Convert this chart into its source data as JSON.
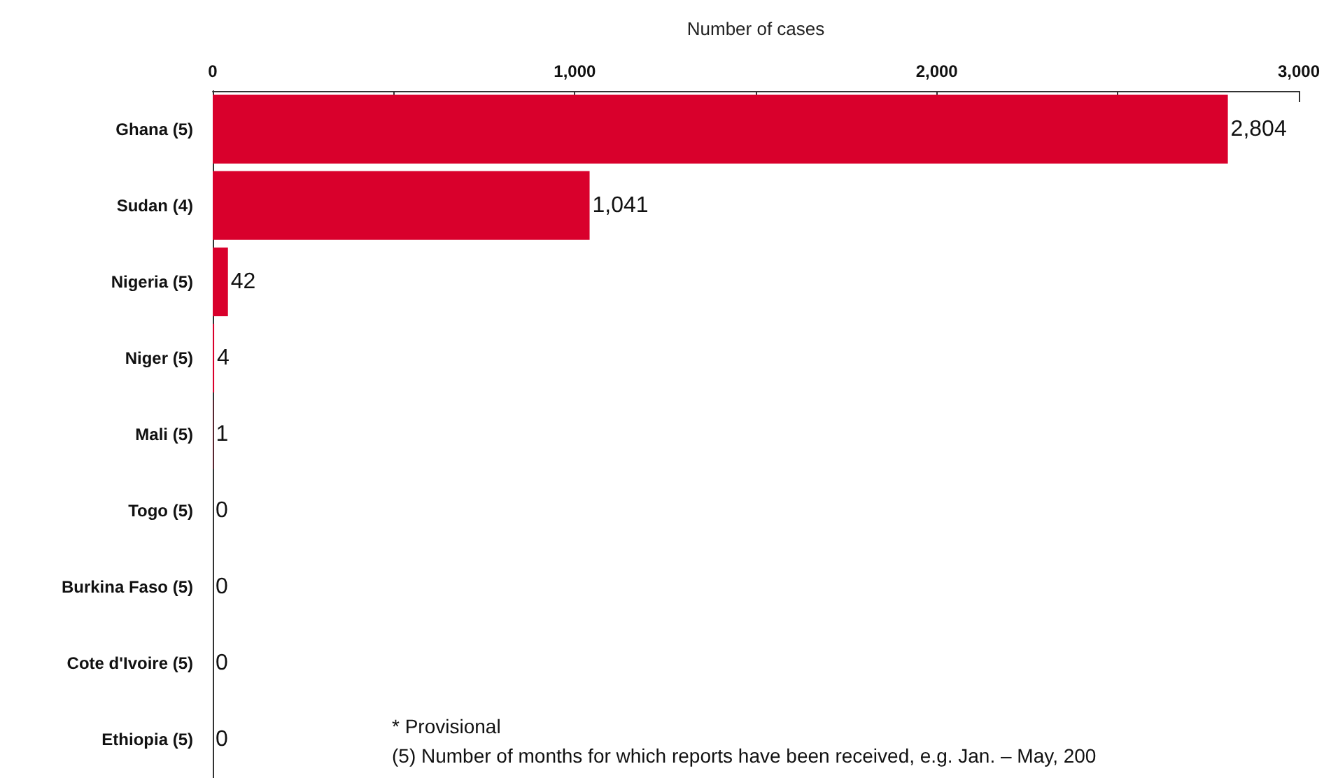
{
  "chart_data": {
    "type": "bar",
    "orientation": "horizontal",
    "xlabel": "Number of cases",
    "categories": [
      "Ghana (5)",
      "Sudan (4)",
      "Nigeria (5)",
      "Niger (5)",
      "Mali (5)",
      "Togo (5)",
      "Burkina Faso (5)",
      "Cote d'Ivoire (5)",
      "Ethiopia (5)"
    ],
    "values": [
      2804,
      1041,
      42,
      4,
      1,
      0,
      0,
      0,
      0
    ],
    "value_labels": [
      "2,804",
      "1,041",
      "42",
      "4",
      "1",
      "0",
      "0",
      "0",
      "0"
    ],
    "color": "#d9002c",
    "xlim": [
      0,
      3000
    ],
    "xticks": [
      0,
      {
        "value": 500,
        "label": null
      },
      {
        "value": 1000,
        "label": "1,000"
      },
      {
        "value": 1500,
        "label": null
      },
      {
        "value": 2000,
        "label": "2,000"
      },
      {
        "value": 2500,
        "label": null
      },
      {
        "value": 3000,
        "label": "3,000"
      }
    ],
    "annotations": [
      "* Provisional",
      "(5) Number of months for which reports have been received, e.g. Jan. – May, 200"
    ],
    "grid": false
  }
}
